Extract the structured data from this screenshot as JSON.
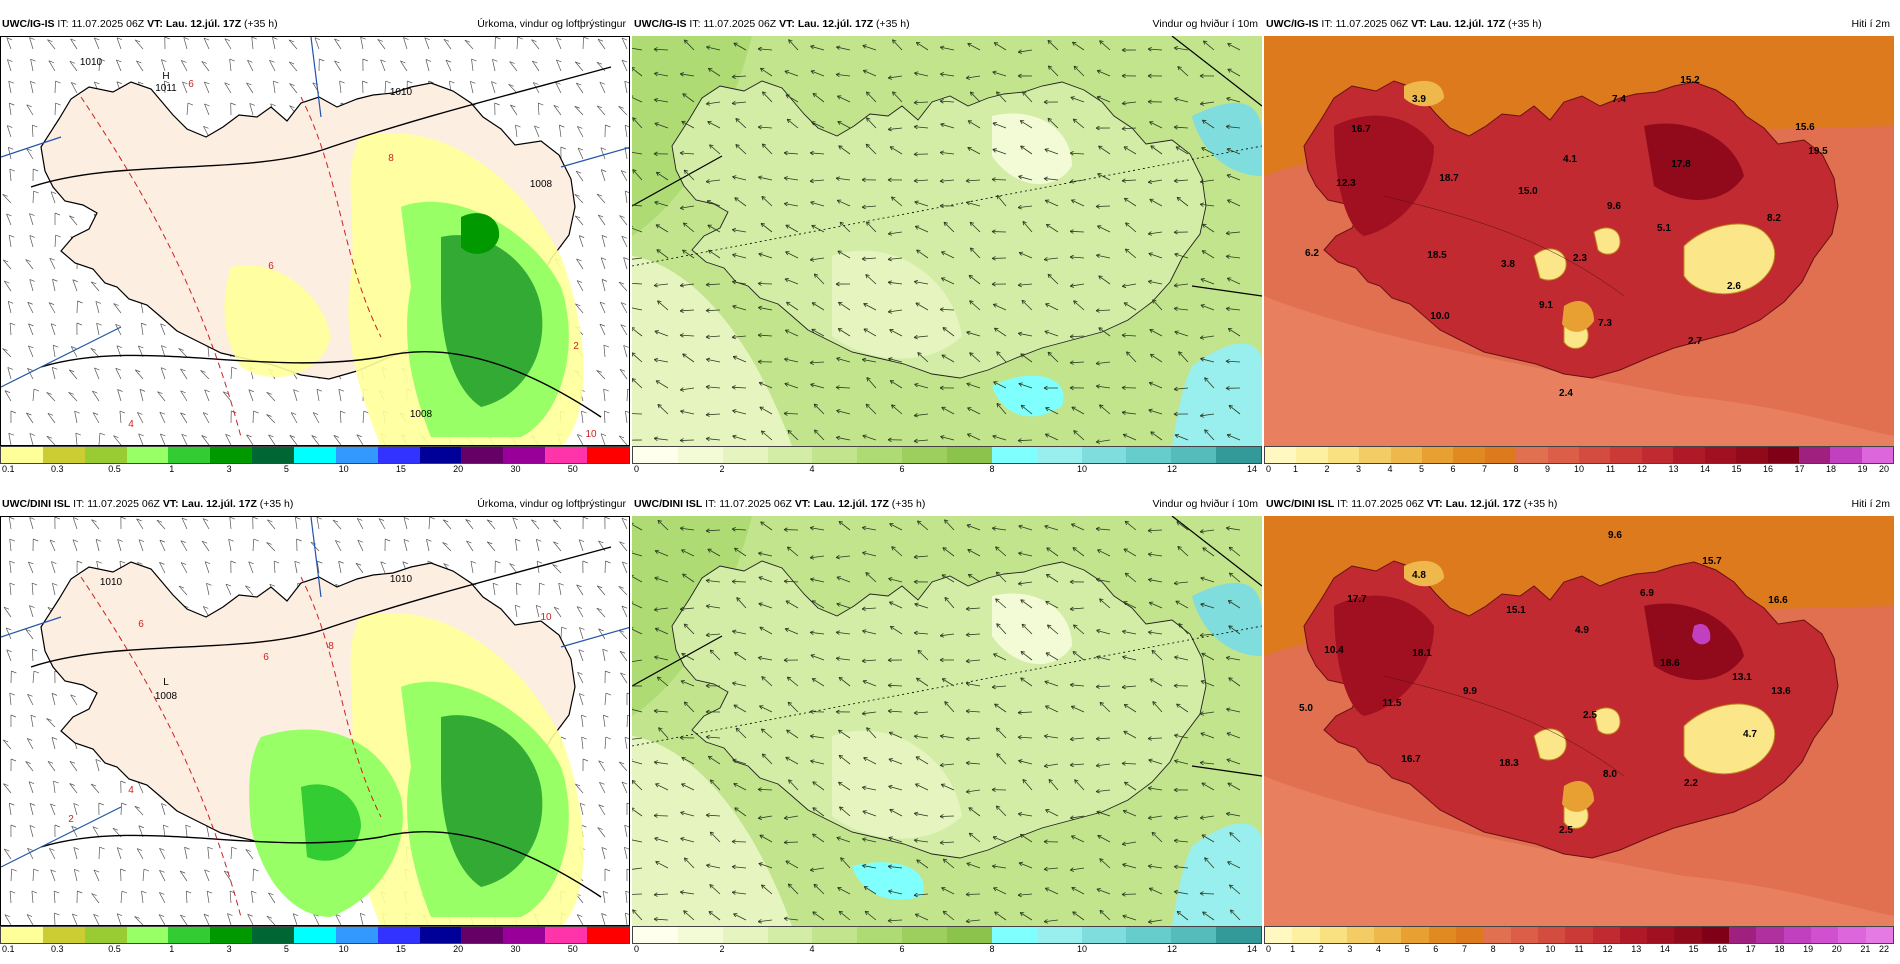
{
  "panels": [
    {
      "id": "p1",
      "model": "UWC/IG-IS",
      "it_label": "IT:",
      "it_value": "11.07.2025 06Z",
      "vt_label": "VT:",
      "vt_value": "Lau. 12.júl. 17Z",
      "lead": "(+35 h)",
      "title": "Úrkoma, vindur og loftþrýstingur",
      "kind": "precip",
      "map_labels": [
        {
          "t": "1010"
        },
        {
          "t": "H"
        },
        {
          "t": "1011"
        },
        {
          "t": "1010"
        },
        {
          "t": "1008"
        },
        {
          "t": "1008"
        },
        {
          "t": "8"
        },
        {
          "t": "6"
        },
        {
          "t": "4"
        },
        {
          "t": "2"
        },
        {
          "t": "10"
        },
        {
          "t": "6"
        }
      ],
      "colorbar": {
        "colors": [
          "#ffff99",
          "#cccc33",
          "#99cc33",
          "#99ff66",
          "#33cc33",
          "#009900",
          "#006633",
          "#00ffff",
          "#3399ff",
          "#3333ff",
          "#000099",
          "#660066",
          "#990099",
          "#ff33aa",
          "#ff0000"
        ],
        "ticks": [
          "0.1",
          "0.3",
          "0.5",
          "1",
          "3",
          "5",
          "10",
          "15",
          "20",
          "30",
          "50"
        ]
      }
    },
    {
      "id": "p2",
      "model": "UWC/IG-IS",
      "it_label": "IT:",
      "it_value": "11.07.2025 06Z",
      "vt_label": "VT:",
      "vt_value": "Lau. 12.júl. 17Z",
      "lead": "(+35 h)",
      "title": "Vindur og hviður í 10m",
      "kind": "wind",
      "map_labels": [],
      "colorbar": {
        "colors": [
          "#ffffee",
          "#f2fbd6",
          "#e6f5c0",
          "#d4eda6",
          "#c2e48c",
          "#aedb73",
          "#9ccf5e",
          "#8cc34c",
          "#80ffff",
          "#99eeee",
          "#80dddd",
          "#66cccc",
          "#55bbbb",
          "#339999"
        ],
        "ticks": [
          "0",
          "2",
          "4",
          "6",
          "8",
          "10",
          "12",
          "14"
        ]
      }
    },
    {
      "id": "p3",
      "model": "UWC/IG-IS",
      "it_label": "IT:",
      "it_value": "11.07.2025 06Z",
      "vt_label": "VT:",
      "vt_value": "Lau. 12.júl. 17Z",
      "lead": "(+35 h)",
      "title": "Hiti í 2m",
      "kind": "temp",
      "map_labels": [
        {
          "t": "3.9"
        },
        {
          "t": "7.4"
        },
        {
          "t": "15.2"
        },
        {
          "t": "16.7"
        },
        {
          "t": "15.6"
        },
        {
          "t": "4.1"
        },
        {
          "t": "17.8"
        },
        {
          "t": "12.3"
        },
        {
          "t": "18.7"
        },
        {
          "t": "15.0"
        },
        {
          "t": "9.6"
        },
        {
          "t": "19.5"
        },
        {
          "t": "8.2"
        },
        {
          "t": "5.1"
        },
        {
          "t": "6.2"
        },
        {
          "t": "18.5"
        },
        {
          "t": "3.8"
        },
        {
          "t": "2.3"
        },
        {
          "t": "2.6"
        },
        {
          "t": "9.1"
        },
        {
          "t": "10.0"
        },
        {
          "t": "7.3"
        },
        {
          "t": "2.7"
        },
        {
          "t": "2.4"
        }
      ],
      "colorbar": {
        "colors": [
          "#fff8c0",
          "#fdf0a0",
          "#f9e080",
          "#f3cc66",
          "#eeb84c",
          "#e8a033",
          "#e28a22",
          "#dd7a1e",
          "#e07050",
          "#dc5e48",
          "#d44c40",
          "#cc3a38",
          "#c02a30",
          "#b01a28",
          "#a01020",
          "#900a1c",
          "#800018",
          "#a02080",
          "#c040c0",
          "#dd66dd"
        ],
        "ticks": [
          "0",
          "1",
          "2",
          "3",
          "4",
          "5",
          "6",
          "7",
          "8",
          "9",
          "10",
          "11",
          "12",
          "13",
          "14",
          "15",
          "16",
          "17",
          "18",
          "19",
          "20"
        ]
      }
    },
    {
      "id": "p4",
      "model": "UWC/DINI ISL",
      "it_label": "IT:",
      "it_value": "11.07.2025 06Z",
      "vt_label": "VT:",
      "vt_value": "Lau. 12.júl. 17Z",
      "lead": "(+35 h)",
      "title": "Úrkoma, vindur og loftþrýstingur",
      "kind": "precip",
      "map_labels": [
        {
          "t": "1010"
        },
        {
          "t": "L"
        },
        {
          "t": "1008"
        },
        {
          "t": "8"
        },
        {
          "t": "6"
        },
        {
          "t": "4"
        },
        {
          "t": "2"
        },
        {
          "t": "10"
        },
        {
          "t": "1010"
        },
        {
          "t": "6"
        }
      ],
      "colorbar": {
        "colors": [
          "#ffff99",
          "#cccc33",
          "#99cc33",
          "#99ff66",
          "#33cc33",
          "#009900",
          "#006633",
          "#00ffff",
          "#3399ff",
          "#3333ff",
          "#000099",
          "#660066",
          "#990099",
          "#ff33aa",
          "#ff0000"
        ],
        "ticks": [
          "0.1",
          "0.3",
          "0.5",
          "1",
          "3",
          "5",
          "10",
          "15",
          "20",
          "30",
          "50"
        ]
      }
    },
    {
      "id": "p5",
      "model": "UWC/DINI ISL",
      "it_label": "IT:",
      "it_value": "11.07.2025 06Z",
      "vt_label": "VT:",
      "vt_value": "Lau. 12.júl. 17Z",
      "lead": "(+35 h)",
      "title": "Vindur og hviður í 10m",
      "kind": "wind",
      "map_labels": [],
      "colorbar": {
        "colors": [
          "#ffffee",
          "#f2fbd6",
          "#e6f5c0",
          "#d4eda6",
          "#c2e48c",
          "#aedb73",
          "#9ccf5e",
          "#8cc34c",
          "#80ffff",
          "#99eeee",
          "#80dddd",
          "#66cccc",
          "#55bbbb",
          "#339999"
        ],
        "ticks": [
          "0",
          "2",
          "4",
          "6",
          "8",
          "10",
          "12",
          "14"
        ]
      }
    },
    {
      "id": "p6",
      "model": "UWC/DINI ISL",
      "it_label": "IT:",
      "it_value": "11.07.2025 06Z",
      "vt_label": "VT:",
      "vt_value": "Lau. 12.júl. 17Z",
      "lead": "(+35 h)",
      "title": "Hiti í 2m",
      "kind": "temp",
      "map_labels": [
        {
          "t": "9.6"
        },
        {
          "t": "4.8"
        },
        {
          "t": "15.7"
        },
        {
          "t": "17.7"
        },
        {
          "t": "15.1"
        },
        {
          "t": "6.9"
        },
        {
          "t": "16.6"
        },
        {
          "t": "4.9"
        },
        {
          "t": "10.4"
        },
        {
          "t": "18.1"
        },
        {
          "t": "18.6"
        },
        {
          "t": "13.1"
        },
        {
          "t": "13.6"
        },
        {
          "t": "5.0"
        },
        {
          "t": "11.5"
        },
        {
          "t": "9.9"
        },
        {
          "t": "2.5"
        },
        {
          "t": "4.7"
        },
        {
          "t": "16.7"
        },
        {
          "t": "18.3"
        },
        {
          "t": "8.0"
        },
        {
          "t": "2.2"
        },
        {
          "t": "2.5"
        }
      ],
      "colorbar": {
        "colors": [
          "#fff8c0",
          "#fdf0a0",
          "#f9e080",
          "#f3cc66",
          "#eeb84c",
          "#e8a033",
          "#e28a22",
          "#dd7a1e",
          "#e07050",
          "#dc5e48",
          "#d44c40",
          "#cc3a38",
          "#c02a30",
          "#b01a28",
          "#a01020",
          "#900a1c",
          "#800018",
          "#a02080",
          "#b030a0",
          "#c040c0",
          "#d050d0",
          "#dd66dd",
          "#e57ae5"
        ],
        "ticks": [
          "0",
          "1",
          "2",
          "3",
          "4",
          "5",
          "6",
          "7",
          "8",
          "9",
          "10",
          "11",
          "12",
          "13",
          "14",
          "15",
          "16",
          "17",
          "18",
          "19",
          "20",
          "21",
          "22"
        ]
      }
    }
  ]
}
